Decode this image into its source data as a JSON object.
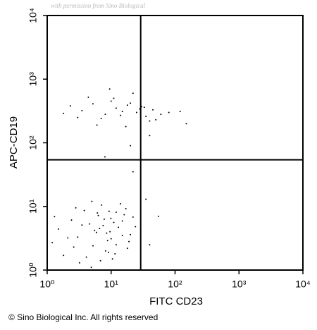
{
  "chart_data": {
    "type": "scatter",
    "watermark": "with permission from Sino Biological",
    "x_label": "FITC CD23",
    "y_label": "APC-CD19",
    "footer": "© Sino Biological Inc. All rights reserved",
    "log_x": true,
    "log_y": true,
    "color": "#000000",
    "quadrant_x": 29,
    "quadrant_y": 54,
    "xlim": [
      1,
      10000
    ],
    "ylim": [
      1,
      10000
    ],
    "xticks": [
      {
        "value": 1,
        "label": "10⁰"
      },
      {
        "value": 10,
        "label": "10¹"
      },
      {
        "value": 100,
        "label": "10²"
      },
      {
        "value": 1000,
        "label": "10³"
      },
      {
        "value": 10000,
        "label": "10⁴"
      }
    ],
    "yticks": [
      {
        "value": 1,
        "label": "10⁰"
      },
      {
        "value": 10,
        "label": "10¹"
      },
      {
        "value": 100,
        "label": "10²"
      },
      {
        "value": 1000,
        "label": "10³"
      },
      {
        "value": 10000,
        "label": "10⁴"
      }
    ],
    "x": [
      2.1,
      3.5,
      5.2,
      7.8,
      9.6,
      12,
      15,
      4.1,
      6.3,
      8.8,
      1.5,
      2.8,
      11,
      18,
      22,
      3.2,
      5.9,
      7.1,
      9.1,
      13,
      1.2,
      2.4,
      4.6,
      6.8,
      10,
      14,
      16,
      20,
      3.8,
      5.5,
      8.2,
      9.9,
      1.8,
      3.0,
      7.5,
      12,
      17,
      24,
      4.9,
      6.1,
      2.6,
      8.5,
      10.5,
      15,
      1.3,
      5.0,
      9.3,
      19,
      6.6,
      11.5,
      22,
      35,
      55,
      40,
      3.5,
      5.2,
      8.1,
      12,
      18,
      25,
      35,
      45,
      60,
      4.4,
      7.0,
      10,
      15,
      22,
      30,
      40,
      2.3,
      6.0,
      9.5,
      14,
      20,
      28,
      50,
      80,
      3.0,
      11,
      17,
      33,
      120,
      1.8,
      20,
      40,
      8,
      150
    ],
    "values": [
      3.2,
      5.1,
      2.4,
      6.3,
      4.0,
      8.1,
      3.5,
      1.6,
      7.2,
      2.9,
      4.4,
      9.5,
      5.6,
      2.2,
      6.8,
      1.3,
      3.9,
      10.5,
      1.9,
      4.7,
      2.7,
      6.1,
      5.3,
      1.4,
      3.1,
      11,
      7.4,
      3.6,
      8.6,
      4.2,
      2.0,
      6.5,
      1.7,
      3.3,
      5.0,
      2.5,
      9.2,
      4.8,
      1.1,
      7.9,
      2.3,
      3.8,
      1.5,
      5.9,
      6.9,
      12,
      8.4,
      2.8,
      4.5,
      1.8,
      35,
      13,
      7,
      2.5,
      320,
      410,
      280,
      350,
      390,
      300,
      260,
      330,
      280,
      520,
      240,
      450,
      310,
      600,
      370,
      220,
      380,
      190,
      700,
      270,
      420,
      340,
      230,
      300,
      250,
      500,
      180,
      360,
      310,
      290,
      90,
      130,
      60,
      200
    ]
  }
}
